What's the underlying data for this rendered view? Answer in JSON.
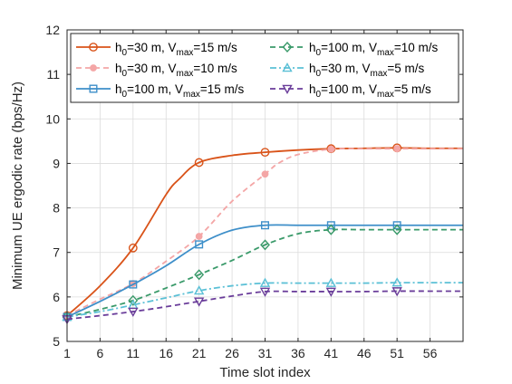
{
  "chart_data": {
    "type": "line",
    "title": "",
    "xlabel": "Time slot index",
    "ylabel": "Minimum UE ergodic rate (bps/Hz)",
    "xlim": [
      1,
      61
    ],
    "ylim": [
      5,
      12
    ],
    "xticks": [
      1,
      6,
      11,
      16,
      21,
      26,
      31,
      36,
      41,
      46,
      51,
      56
    ],
    "yticks": [
      5,
      6,
      7,
      8,
      9,
      10,
      11,
      12
    ],
    "grid": true,
    "legend_position": "top",
    "series": [
      {
        "name_parts": [
          "h",
          "0",
          "=30 m, V",
          "max",
          "=15 m/s"
        ],
        "color": "#D95319",
        "dash": "solid",
        "marker": "circle",
        "x": [
          1,
          6,
          11,
          16,
          18,
          21,
          26,
          31,
          36,
          41,
          46,
          51,
          56,
          61
        ],
        "y": [
          5.58,
          6.25,
          7.1,
          8.3,
          8.65,
          9.02,
          9.18,
          9.25,
          9.3,
          9.33,
          9.34,
          9.35,
          9.34,
          9.34
        ],
        "marker_x": [
          1,
          11,
          21,
          31,
          41,
          51
        ],
        "marker_y": [
          5.58,
          7.1,
          9.02,
          9.25,
          9.33,
          9.35
        ]
      },
      {
        "name_parts": [
          "h",
          "0",
          "=30 m, V",
          "max",
          "=10 m/s"
        ],
        "color": "#F4A6A6",
        "dash": "dashed",
        "marker": "dot",
        "x": [
          1,
          6,
          11,
          16,
          21,
          26,
          31,
          33,
          36,
          41,
          46,
          51,
          56,
          61
        ],
        "y": [
          5.58,
          5.95,
          6.3,
          6.8,
          7.36,
          8.15,
          8.76,
          9.0,
          9.2,
          9.32,
          9.33,
          9.33,
          9.33,
          9.33
        ],
        "marker_x": [
          1,
          11,
          21,
          31,
          41,
          51
        ],
        "marker_y": [
          5.58,
          6.3,
          7.36,
          8.76,
          9.32,
          9.33
        ]
      },
      {
        "name_parts": [
          "h",
          "0",
          "=100 m, V",
          "max",
          "=15 m/s"
        ],
        "color": "#3E8FC9",
        "dash": "solid",
        "marker": "square",
        "x": [
          1,
          6,
          11,
          16,
          21,
          26,
          31,
          36,
          41,
          46,
          51,
          56,
          61
        ],
        "y": [
          5.55,
          5.9,
          6.28,
          6.7,
          7.18,
          7.5,
          7.61,
          7.61,
          7.61,
          7.61,
          7.61,
          7.61,
          7.61
        ],
        "marker_x": [
          1,
          11,
          21,
          31,
          41,
          51
        ],
        "marker_y": [
          5.55,
          6.28,
          7.18,
          7.61,
          7.61,
          7.61
        ]
      },
      {
        "name_parts": [
          "h",
          "0",
          "=100 m, V",
          "max",
          "=10 m/s"
        ],
        "color": "#3A9A6A",
        "dash": "dashed",
        "marker": "diamond",
        "x": [
          1,
          6,
          11,
          16,
          21,
          26,
          31,
          36,
          41,
          46,
          51,
          56,
          61
        ],
        "y": [
          5.55,
          5.72,
          5.92,
          6.2,
          6.5,
          6.82,
          7.17,
          7.42,
          7.51,
          7.51,
          7.51,
          7.51,
          7.51
        ],
        "marker_x": [
          1,
          11,
          21,
          31,
          41,
          51
        ],
        "marker_y": [
          5.55,
          5.92,
          6.5,
          7.17,
          7.51,
          7.51
        ]
      },
      {
        "name_parts": [
          "h",
          "0",
          "=30 m, V",
          "max",
          "=5 m/s"
        ],
        "color": "#5BC0D6",
        "dash": "dashdot",
        "marker": "triangle-up",
        "x": [
          1,
          6,
          11,
          16,
          21,
          26,
          31,
          36,
          41,
          46,
          51,
          56,
          61
        ],
        "y": [
          5.55,
          5.67,
          5.82,
          5.98,
          6.14,
          6.25,
          6.31,
          6.31,
          6.31,
          6.31,
          6.32,
          6.32,
          6.32
        ],
        "marker_x": [
          1,
          11,
          21,
          31,
          41,
          51
        ],
        "marker_y": [
          5.55,
          5.82,
          6.14,
          6.31,
          6.31,
          6.32
        ]
      },
      {
        "name_parts": [
          "h",
          "0",
          "=100 m, V",
          "max",
          "=5 m/s"
        ],
        "color": "#6A3D9A",
        "dash": "dashed",
        "marker": "triangle-down",
        "x": [
          1,
          6,
          11,
          16,
          21,
          26,
          31,
          36,
          41,
          46,
          51,
          56,
          61
        ],
        "y": [
          5.5,
          5.58,
          5.67,
          5.78,
          5.9,
          6.02,
          6.12,
          6.12,
          6.12,
          6.12,
          6.13,
          6.13,
          6.13
        ],
        "marker_x": [
          1,
          11,
          21,
          31,
          41,
          51
        ],
        "marker_y": [
          5.5,
          5.67,
          5.9,
          6.12,
          6.12,
          6.13
        ]
      }
    ]
  }
}
